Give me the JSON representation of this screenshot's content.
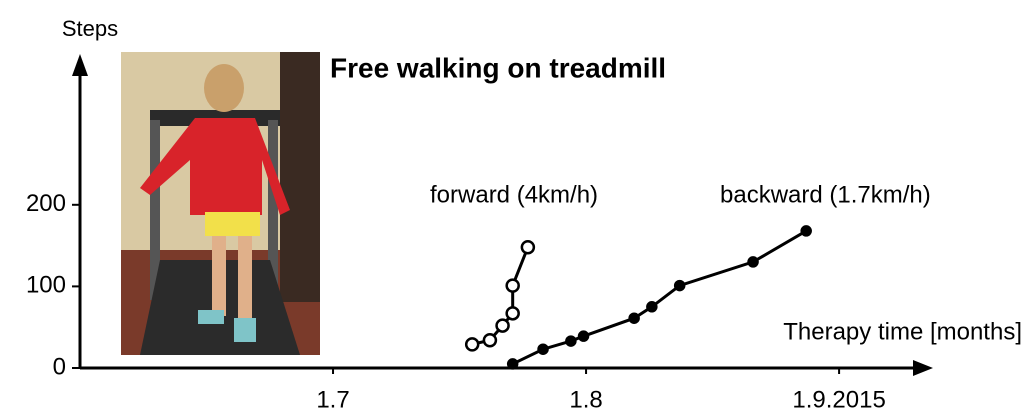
{
  "chart_data": {
    "type": "line",
    "title": "Free walking on treadmill",
    "x_label": "Therapy time [months]",
    "y_label": "Steps",
    "xlim": [
      6.0,
      9.3
    ],
    "xticks": [
      {
        "value": 7,
        "label": "1.7"
      },
      {
        "value": 8,
        "label": "1.8"
      },
      {
        "value": 9,
        "label": "1.9.2015"
      }
    ],
    "ylim": [
      0,
      375
    ],
    "yticks": [
      0,
      100,
      200
    ],
    "series": [
      {
        "name": "forward (4km/h)",
        "color": "#000000",
        "marker": "open",
        "x": [
          7.55,
          7.62,
          7.67,
          7.71,
          7.71,
          7.77
        ],
        "values": [
          29,
          34,
          52,
          67,
          101,
          148
        ]
      },
      {
        "name": "backward (1.7km/h)",
        "color": "#000000",
        "marker": "filled",
        "x": [
          7.71,
          7.83,
          7.94,
          7.99,
          8.19,
          8.26,
          8.37,
          8.66,
          8.87
        ],
        "values": [
          5,
          23,
          33,
          39,
          61,
          75,
          101,
          130,
          168
        ]
      }
    ]
  }
}
